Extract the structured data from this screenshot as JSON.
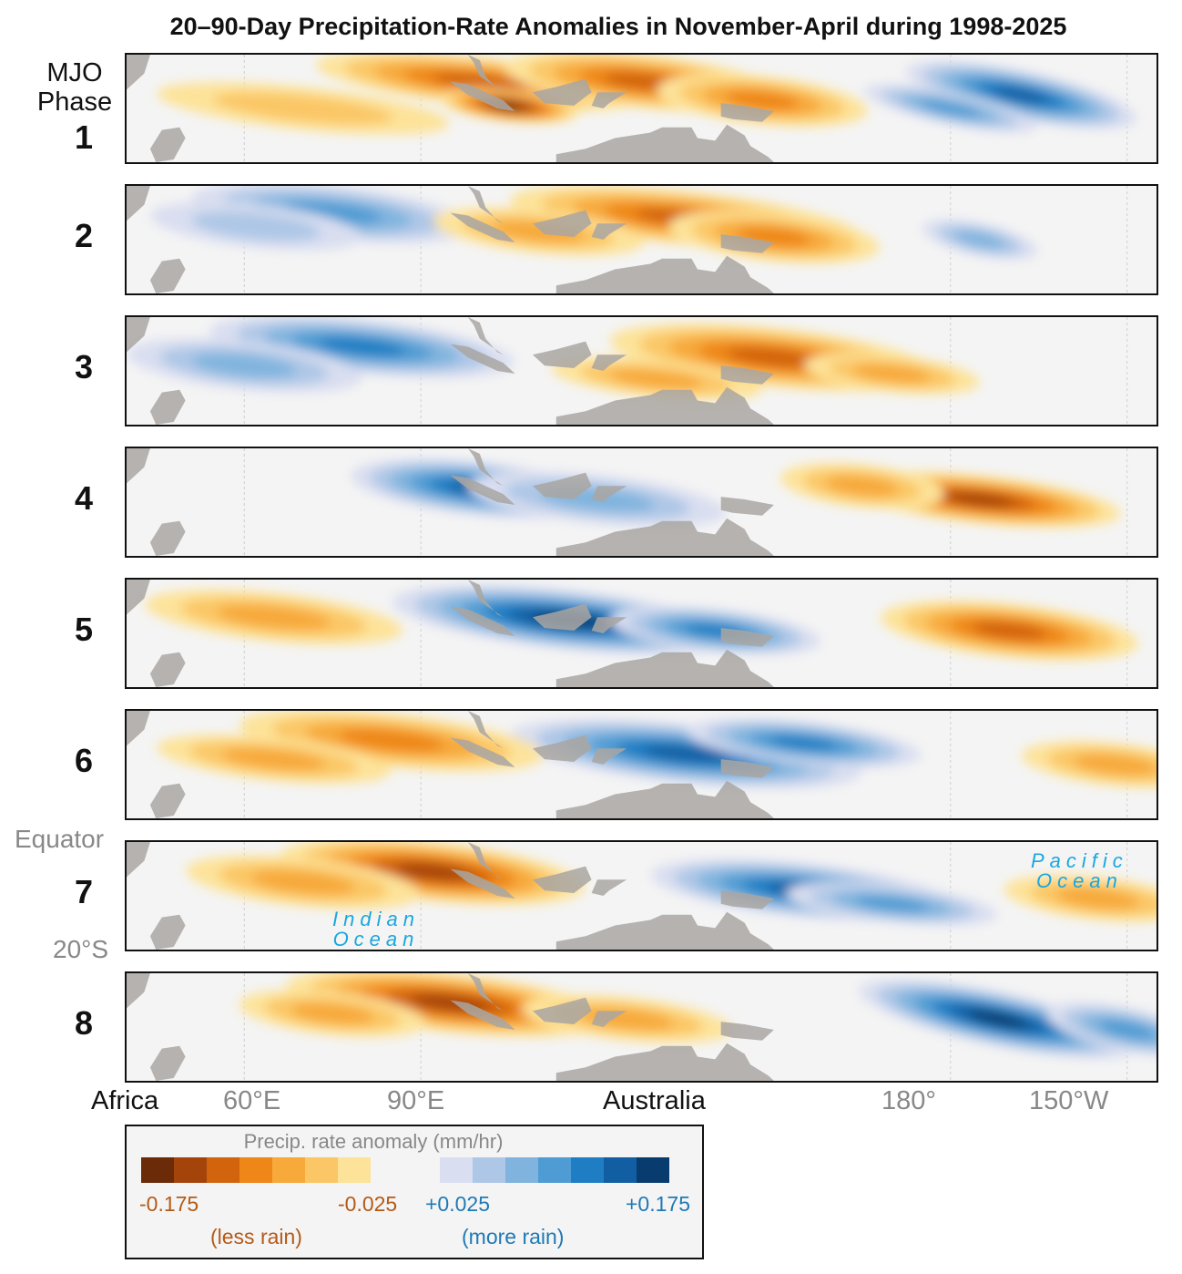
{
  "title": "20–90-Day Precipitation-Rate Anomalies in November-April during 1998-2025",
  "mjo_label": [
    "MJO",
    "Phase"
  ],
  "phases": [
    "1",
    "2",
    "3",
    "4",
    "5",
    "6",
    "7",
    "8"
  ],
  "lat_labels": {
    "equator": "Equator",
    "south": "20°S"
  },
  "ocean_labels": {
    "indian": [
      "Indian",
      "Ocean"
    ],
    "pacific": [
      "Pacific",
      "Ocean"
    ]
  },
  "lon_labels": {
    "africa": "Africa",
    "lon60e": "60°E",
    "lon90e": "90°E",
    "australia": "Australia",
    "lon180": "180°",
    "lon150w": "150°W"
  },
  "legend": {
    "title": "Precip. rate anomaly (mm/hr)",
    "neg_min": "-0.175",
    "neg_max": "-0.025",
    "pos_min": "+0.025",
    "pos_max": "+0.175",
    "neg_note": "(less rain)",
    "pos_note": "(more rain)",
    "dry_colors": [
      "#6b2a08",
      "#a4440b",
      "#d2640e",
      "#ee8618",
      "#f7a93a",
      "#fbc766",
      "#fde39a"
    ],
    "wet_colors": [
      "#d9def0",
      "#aec7e6",
      "#80b4de",
      "#4f9bd3",
      "#1f7ec3",
      "#125ea3",
      "#083c6e"
    ]
  },
  "colors": {
    "land": "#a9a6a2",
    "background": "#f4f4f4",
    "ocean_label": "#1aa7df",
    "dry_text": "#b45a17",
    "wet_text": "#1f79b5"
  },
  "map_data": {
    "phase_blobs": [
      {
        "phase": "1",
        "blobs": [
          {
            "lon": 100,
            "lat": 5,
            "lonW": 28,
            "latH": 9,
            "level": -5
          },
          {
            "lon": 128,
            "lat": 5,
            "lonW": 24,
            "latH": 10,
            "level": -5
          },
          {
            "lon": 105,
            "lat": -4,
            "lonW": 12,
            "latH": 6,
            "level": -7
          },
          {
            "lon": 148,
            "lat": -2,
            "lonW": 18,
            "latH": 9,
            "level": -4
          },
          {
            "lon": 70,
            "lat": -5,
            "lonW": 25,
            "latH": 8,
            "level": -2
          },
          {
            "lon": 192,
            "lat": 0,
            "lonW": 20,
            "latH": 9,
            "level": 6
          },
          {
            "lon": 180,
            "lat": -5,
            "lonW": 15,
            "latH": 6,
            "level": 4
          }
        ]
      },
      {
        "phase": "2",
        "blobs": [
          {
            "lon": 75,
            "lat": 5,
            "lonW": 24,
            "latH": 10,
            "level": 4
          },
          {
            "lon": 62,
            "lat": 0,
            "lonW": 18,
            "latH": 8,
            "level": 2
          },
          {
            "lon": 135,
            "lat": 3,
            "lonW": 30,
            "latH": 10,
            "level": -5
          },
          {
            "lon": 150,
            "lat": -4,
            "lonW": 18,
            "latH": 9,
            "level": -4
          },
          {
            "lon": 110,
            "lat": -2,
            "lonW": 18,
            "latH": 8,
            "level": -3
          },
          {
            "lon": 185,
            "lat": -5,
            "lonW": 10,
            "latH": 6,
            "level": 3
          }
        ]
      },
      {
        "phase": "3",
        "blobs": [
          {
            "lon": 80,
            "lat": 4,
            "lonW": 26,
            "latH": 10,
            "level": 5
          },
          {
            "lon": 60,
            "lat": -3,
            "lonW": 20,
            "latH": 9,
            "level": 3
          },
          {
            "lon": 150,
            "lat": 0,
            "lonW": 28,
            "latH": 11,
            "level": -5
          },
          {
            "lon": 130,
            "lat": -8,
            "lonW": 18,
            "latH": 7,
            "level": -3
          },
          {
            "lon": 170,
            "lat": -6,
            "lonW": 15,
            "latH": 7,
            "level": -3
          }
        ]
      },
      {
        "phase": "4",
        "blobs": [
          {
            "lon": 100,
            "lat": 0,
            "lonW": 22,
            "latH": 10,
            "level": 6
          },
          {
            "lon": 120,
            "lat": -4,
            "lonW": 22,
            "latH": 9,
            "level": 3
          },
          {
            "lon": 185,
            "lat": -4,
            "lonW": 24,
            "latH": 9,
            "level": -6
          },
          {
            "lon": 165,
            "lat": 1,
            "lonW": 14,
            "latH": 8,
            "level": -3
          }
        ]
      },
      {
        "phase": "5",
        "blobs": [
          {
            "lon": 115,
            "lat": 0,
            "lonW": 30,
            "latH": 11,
            "level": 7
          },
          {
            "lon": 140,
            "lat": -4,
            "lonW": 18,
            "latH": 8,
            "level": 5
          },
          {
            "lon": 190,
            "lat": -4,
            "lonW": 22,
            "latH": 10,
            "level": -5
          },
          {
            "lon": 65,
            "lat": 1,
            "lonW": 22,
            "latH": 9,
            "level": -3
          }
        ]
      },
      {
        "phase": "6",
        "blobs": [
          {
            "lon": 135,
            "lat": -1,
            "lonW": 30,
            "latH": 11,
            "level": 6
          },
          {
            "lon": 155,
            "lat": 3,
            "lonW": 20,
            "latH": 8,
            "level": 5
          },
          {
            "lon": 85,
            "lat": 4,
            "lonW": 26,
            "latH": 10,
            "level": -4
          },
          {
            "lon": 65,
            "lat": -3,
            "lonW": 20,
            "latH": 8,
            "level": -3
          },
          {
            "lon": 208,
            "lat": -5,
            "lonW": 16,
            "latH": 8,
            "level": -3
          }
        ]
      },
      {
        "phase": "7",
        "blobs": [
          {
            "lon": 155,
            "lat": -3,
            "lonW": 26,
            "latH": 10,
            "level": 6
          },
          {
            "lon": 170,
            "lat": -8,
            "lonW": 18,
            "latH": 7,
            "level": 4
          },
          {
            "lon": 92,
            "lat": 4,
            "lonW": 26,
            "latH": 11,
            "level": -6
          },
          {
            "lon": 70,
            "lat": 0,
            "lonW": 20,
            "latH": 9,
            "level": -3
          },
          {
            "lon": 205,
            "lat": -6,
            "lonW": 16,
            "latH": 8,
            "level": -3
          }
        ]
      },
      {
        "phase": "8",
        "blobs": [
          {
            "lon": 188,
            "lat": -2,
            "lonW": 24,
            "latH": 10,
            "level": 7
          },
          {
            "lon": 210,
            "lat": -6,
            "lonW": 14,
            "latH": 8,
            "level": 4
          },
          {
            "lon": 95,
            "lat": 4,
            "lonW": 28,
            "latH": 11,
            "level": -6
          },
          {
            "lon": 125,
            "lat": -2,
            "lonW": 18,
            "latH": 8,
            "level": -3
          },
          {
            "lon": 75,
            "lat": 0,
            "lonW": 16,
            "latH": 8,
            "level": -3
          }
        ]
      }
    ]
  }
}
